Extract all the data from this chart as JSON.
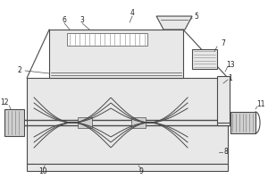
{
  "line_color": "#4a4a4a",
  "lw_main": 0.8,
  "lw_thin": 0.5,
  "lw_thick": 1.0,
  "fc_main": "#f2f2f2",
  "fc_light": "#e8e8e8",
  "fc_dark": "#d0d0d0"
}
